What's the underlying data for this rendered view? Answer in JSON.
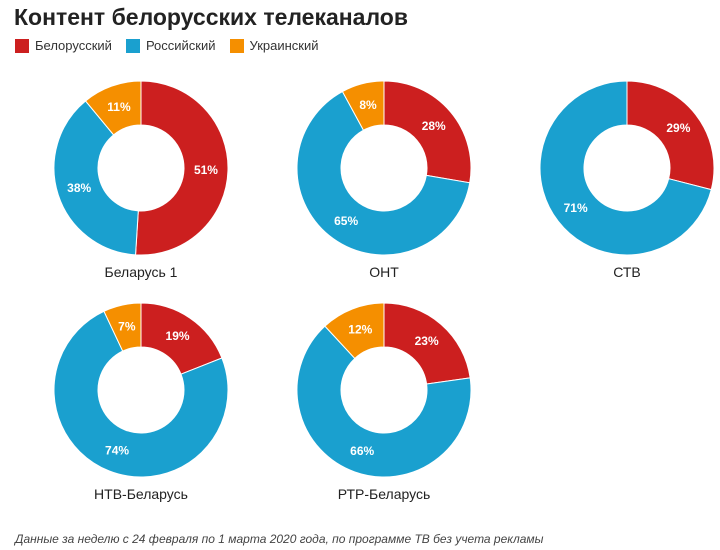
{
  "title": "Контент белорусских телеканалов",
  "legend": [
    {
      "label": "Белорусский",
      "color": "#cc1f1f"
    },
    {
      "label": "Российский",
      "color": "#1aa0cf"
    },
    {
      "label": "Украинский",
      "color": "#f58f00"
    }
  ],
  "footnote": "Данные за неделю с 24 февраля по 1 марта 2020 года, по программе ТВ без учета рекламы",
  "chart_data": [
    {
      "type": "pie",
      "title": "Беларусь 1",
      "categories": [
        "Белорусский",
        "Российский",
        "Украинский"
      ],
      "values": [
        51,
        38,
        11
      ],
      "labels": [
        "51%",
        "38%",
        "11%"
      ]
    },
    {
      "type": "pie",
      "title": "ОНТ",
      "categories": [
        "Белорусский",
        "Российский",
        "Украинский"
      ],
      "values": [
        28,
        65,
        8
      ],
      "labels": [
        "28%",
        "65%",
        "8%"
      ]
    },
    {
      "type": "pie",
      "title": "СТВ",
      "categories": [
        "Белорусский",
        "Российский"
      ],
      "values": [
        29,
        71
      ],
      "labels": [
        "29%",
        "71%"
      ]
    },
    {
      "type": "pie",
      "title": "НТВ-Беларусь",
      "categories": [
        "Белорусский",
        "Российский",
        "Украинский"
      ],
      "values": [
        19,
        74,
        7
      ],
      "labels": [
        "19%",
        "74%",
        "7%"
      ]
    },
    {
      "type": "pie",
      "title": "РТР-Беларусь",
      "categories": [
        "Белорусский",
        "Российский",
        "Украинский"
      ],
      "values": [
        23,
        66,
        12
      ],
      "labels": [
        "23%",
        "66%",
        "12%"
      ]
    }
  ]
}
